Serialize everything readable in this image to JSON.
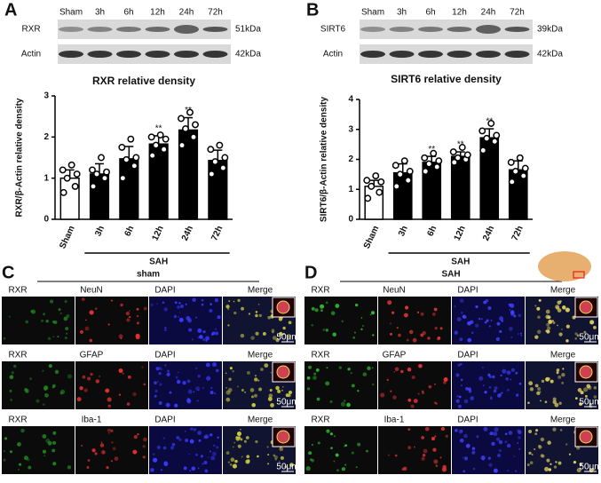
{
  "blots": [
    {
      "letter": "A",
      "lanes": [
        "Sham",
        "3h",
        "6h",
        "12h",
        "24h",
        "72h"
      ],
      "rows": [
        {
          "label": "RXR",
          "size": "51kDa"
        },
        {
          "label": "Actin",
          "size": "42kDa"
        }
      ]
    },
    {
      "letter": "B",
      "lanes": [
        "Sham",
        "3h",
        "6h",
        "12h",
        "24h",
        "72h"
      ],
      "rows": [
        {
          "label": "SIRT6",
          "size": "39kDa"
        },
        {
          "label": "Actin",
          "size": "42kDa"
        }
      ]
    }
  ],
  "chart_data": [
    {
      "type": "bar",
      "title": "RXR relative density",
      "y_label": "RXR/β-Actin relative density",
      "categories": [
        "Sham",
        "3h",
        "6h",
        "12h",
        "24h",
        "72h"
      ],
      "values": [
        1.0,
        1.1,
        1.47,
        1.83,
        2.17,
        1.43
      ],
      "errors": [
        0.2,
        0.25,
        0.3,
        0.2,
        0.3,
        0.25
      ],
      "points": [
        [
          0.65,
          0.8,
          1.0,
          1.1,
          1.2,
          1.32
        ],
        [
          0.8,
          1.0,
          1.1,
          1.15,
          1.2,
          1.5
        ],
        [
          1.0,
          1.3,
          1.45,
          1.5,
          1.75,
          1.95
        ],
        [
          1.55,
          1.7,
          1.8,
          1.95,
          2.0,
          2.05
        ],
        [
          1.8,
          2.0,
          2.2,
          2.3,
          2.45,
          2.6
        ],
        [
          1.1,
          1.25,
          1.4,
          1.5,
          1.7,
          1.8
        ]
      ],
      "colors": [
        "#ffffff",
        "#000000",
        "#000000",
        "#000000",
        "#000000",
        "#000000"
      ],
      "significance": [
        null,
        null,
        null,
        "**",
        "**",
        null
      ],
      "group_label": "SAH",
      "ylim": [
        0,
        3
      ],
      "yticks": [
        0,
        1,
        2,
        3
      ]
    },
    {
      "type": "bar",
      "title": "SIRT6 relative density",
      "y_label": "SIRT6/β-Actin relative density",
      "categories": [
        "Sham",
        "3h",
        "6h",
        "12h",
        "24h",
        "72h"
      ],
      "values": [
        1.1,
        1.55,
        1.9,
        2.1,
        2.72,
        1.65
      ],
      "errors": [
        0.2,
        0.3,
        0.2,
        0.15,
        0.3,
        0.3
      ],
      "points": [
        [
          0.7,
          0.9,
          1.1,
          1.25,
          1.3,
          1.45
        ],
        [
          1.1,
          1.3,
          1.5,
          1.6,
          1.8,
          1.95
        ],
        [
          1.6,
          1.75,
          1.85,
          1.95,
          2.05,
          2.2
        ],
        [
          1.9,
          2.0,
          2.05,
          2.15,
          2.25,
          2.4
        ],
        [
          2.3,
          2.6,
          2.7,
          2.8,
          2.95,
          3.2
        ],
        [
          1.25,
          1.45,
          1.6,
          1.7,
          1.9,
          2.05
        ]
      ],
      "colors": [
        "#ffffff",
        "#000000",
        "#000000",
        "#000000",
        "#000000",
        "#000000"
      ],
      "significance": [
        null,
        null,
        "**",
        "**",
        "**",
        null
      ],
      "group_label": "SAH",
      "ylim": [
        0,
        4
      ],
      "yticks": [
        0,
        1,
        2,
        3,
        4
      ]
    }
  ],
  "micrographs": [
    {
      "letter": "C",
      "title": "sham",
      "rows": [
        [
          "RXR",
          "NeuN",
          "DAPI",
          "Merge"
        ],
        [
          "RXR",
          "GFAP",
          "DAPI",
          "Merge"
        ],
        [
          "RXR",
          "Iba-1",
          "DAPI",
          "Merge"
        ]
      ],
      "scale_bar": "50μm"
    },
    {
      "letter": "D",
      "title": "SAH",
      "rows": [
        [
          "RXR",
          "NeuN",
          "DAPI",
          "Merge"
        ],
        [
          "RXR",
          "GFAP",
          "DAPI",
          "Merge"
        ],
        [
          "RXR",
          "Iba-1",
          "DAPI",
          "Merge"
        ]
      ],
      "scale_bar": "50μm"
    }
  ]
}
